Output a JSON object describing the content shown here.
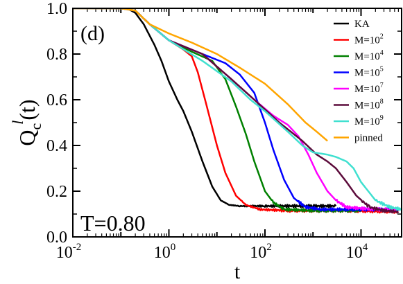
{
  "chart_data": {
    "type": "line",
    "panel_label": "(d)",
    "annotation": "T=0.80",
    "xlabel": "t",
    "ylabel": {
      "main": "Q",
      "sub": "c",
      "sup": "l",
      "arg": "(t)"
    },
    "xscale": "log",
    "xlim": [
      0.01,
      70000
    ],
    "ylim": [
      0.0,
      1.0
    ],
    "xticks": [
      {
        "value": 0.01,
        "base": "10",
        "exp": "-2"
      },
      {
        "value": 1,
        "base": "10",
        "exp": "0"
      },
      {
        "value": 100,
        "base": "10",
        "exp": "2"
      },
      {
        "value": 10000,
        "base": "10",
        "exp": "4"
      }
    ],
    "yticks": [
      {
        "value": 0.0,
        "label": "0.0"
      },
      {
        "value": 0.2,
        "label": "0.2"
      },
      {
        "value": 0.4,
        "label": "0.4"
      },
      {
        "value": 0.6,
        "label": "0.6"
      },
      {
        "value": 0.8,
        "label": "0.8"
      },
      {
        "value": 1.0,
        "label": "1.0"
      }
    ],
    "legend_position": "top-right",
    "series": [
      {
        "name": "KA",
        "color": "#000000",
        "noise": true,
        "points": [
          [
            0.01,
            1.0
          ],
          [
            0.1,
            1.0
          ],
          [
            0.15,
            0.995
          ],
          [
            0.2,
            0.98
          ],
          [
            0.3,
            0.93
          ],
          [
            0.5,
            0.84
          ],
          [
            0.7,
            0.77
          ],
          [
            1.0,
            0.68
          ],
          [
            1.5,
            0.6
          ],
          [
            2.0,
            0.55
          ],
          [
            3.0,
            0.46
          ],
          [
            5.0,
            0.33
          ],
          [
            8.0,
            0.22
          ],
          [
            12.0,
            0.16
          ],
          [
            18.0,
            0.14
          ],
          [
            30.0,
            0.135
          ],
          [
            100.0,
            0.135
          ],
          [
            1000.0,
            0.135
          ],
          [
            3000.0,
            0.135
          ]
        ]
      },
      {
        "name": "M=10",
        "exp": "2",
        "color": "#ff0000",
        "noise": true,
        "points": [
          [
            0.01,
            1.0
          ],
          [
            0.1,
            1.0
          ],
          [
            0.2,
            0.99
          ],
          [
            0.4,
            0.93
          ],
          [
            1.0,
            0.86
          ],
          [
            2.0,
            0.82
          ],
          [
            3.0,
            0.79
          ],
          [
            4.0,
            0.72
          ],
          [
            6.0,
            0.58
          ],
          [
            10.0,
            0.4
          ],
          [
            15.0,
            0.28
          ],
          [
            25.0,
            0.18
          ],
          [
            40.0,
            0.14
          ],
          [
            80.0,
            0.12
          ],
          [
            300.0,
            0.115
          ],
          [
            5000.0,
            0.115
          ],
          [
            60000.0,
            0.11
          ]
        ]
      },
      {
        "name": "M=10",
        "exp": "4",
        "color": "#008000",
        "noise": true,
        "points": [
          [
            0.01,
            1.0
          ],
          [
            0.1,
            1.0
          ],
          [
            0.2,
            0.99
          ],
          [
            0.4,
            0.93
          ],
          [
            1.0,
            0.86
          ],
          [
            3.0,
            0.81
          ],
          [
            8.0,
            0.77
          ],
          [
            15.0,
            0.69
          ],
          [
            25.0,
            0.57
          ],
          [
            40.0,
            0.45
          ],
          [
            60.0,
            0.33
          ],
          [
            100.0,
            0.2
          ],
          [
            150.0,
            0.15
          ],
          [
            250.0,
            0.12
          ],
          [
            1000.0,
            0.115
          ],
          [
            10000.0,
            0.115
          ]
        ]
      },
      {
        "name": "M=10",
        "exp": "5",
        "color": "#0000ff",
        "noise": true,
        "points": [
          [
            0.01,
            1.0
          ],
          [
            0.1,
            1.0
          ],
          [
            0.2,
            0.99
          ],
          [
            0.4,
            0.93
          ],
          [
            1.0,
            0.86
          ],
          [
            5.0,
            0.8
          ],
          [
            15.0,
            0.76
          ],
          [
            30.0,
            0.71
          ],
          [
            60.0,
            0.63
          ],
          [
            100.0,
            0.5
          ],
          [
            150.0,
            0.38
          ],
          [
            250.0,
            0.25
          ],
          [
            400.0,
            0.17
          ],
          [
            700.0,
            0.13
          ],
          [
            1500.0,
            0.12
          ],
          [
            10000.0,
            0.12
          ],
          [
            60000.0,
            0.12
          ]
        ]
      },
      {
        "name": "M=10",
        "exp": "7",
        "color": "#ff00ff",
        "noise": true,
        "points": [
          [
            0.01,
            1.0
          ],
          [
            0.1,
            1.0
          ],
          [
            0.2,
            0.99
          ],
          [
            0.4,
            0.93
          ],
          [
            1.0,
            0.86
          ],
          [
            5.0,
            0.8
          ],
          [
            20.0,
            0.69
          ],
          [
            60.0,
            0.6
          ],
          [
            150.0,
            0.53
          ],
          [
            300.0,
            0.49
          ],
          [
            500.0,
            0.44
          ],
          [
            800.0,
            0.36
          ],
          [
            1200.0,
            0.28
          ],
          [
            2000.0,
            0.2
          ],
          [
            3000.0,
            0.16
          ],
          [
            5000.0,
            0.13
          ],
          [
            20000.0,
            0.12
          ],
          [
            60000.0,
            0.12
          ]
        ]
      },
      {
        "name": "M=10",
        "exp": "8",
        "color": "#5c0b3b",
        "noise": true,
        "points": [
          [
            0.01,
            1.0
          ],
          [
            0.1,
            1.0
          ],
          [
            0.2,
            0.99
          ],
          [
            0.4,
            0.93
          ],
          [
            1.0,
            0.86
          ],
          [
            5.0,
            0.8
          ],
          [
            20.0,
            0.69
          ],
          [
            60.0,
            0.6
          ],
          [
            200.0,
            0.5
          ],
          [
            600.0,
            0.42
          ],
          [
            1200.0,
            0.36
          ],
          [
            2000.0,
            0.33
          ],
          [
            3000.0,
            0.3
          ],
          [
            5000.0,
            0.24
          ],
          [
            8000.0,
            0.18
          ],
          [
            15000.0,
            0.13
          ],
          [
            30000.0,
            0.115
          ],
          [
            60000.0,
            0.11
          ]
        ]
      },
      {
        "name": "M=10",
        "exp": "9",
        "color": "#40e0d0",
        "noise": true,
        "points": [
          [
            0.01,
            1.0
          ],
          [
            0.1,
            1.0
          ],
          [
            0.2,
            0.99
          ],
          [
            0.4,
            0.93
          ],
          [
            1.0,
            0.86
          ],
          [
            5.0,
            0.77
          ],
          [
            20.0,
            0.68
          ],
          [
            50.0,
            0.6
          ],
          [
            100.0,
            0.55
          ],
          [
            300.0,
            0.46
          ],
          [
            600.0,
            0.4
          ],
          [
            1000.0,
            0.37
          ],
          [
            2000.0,
            0.36
          ],
          [
            3000.0,
            0.35
          ],
          [
            5000.0,
            0.33
          ],
          [
            7000.0,
            0.3
          ],
          [
            10000.0,
            0.24
          ],
          [
            20000.0,
            0.16
          ],
          [
            40000.0,
            0.13
          ],
          [
            70000.0,
            0.12
          ]
        ]
      },
      {
        "name": "pinned",
        "color": "#ffa500",
        "noise": false,
        "points": [
          [
            0.01,
            1.0
          ],
          [
            0.1,
            1.0
          ],
          [
            0.2,
            0.99
          ],
          [
            0.4,
            0.93
          ],
          [
            1.0,
            0.89
          ],
          [
            3.0,
            0.85
          ],
          [
            10.0,
            0.8
          ],
          [
            30.0,
            0.74
          ],
          [
            100.0,
            0.67
          ],
          [
            300.0,
            0.58
          ],
          [
            700.0,
            0.5
          ],
          [
            1200.0,
            0.46
          ],
          [
            2000.0,
            0.42
          ]
        ]
      }
    ]
  }
}
